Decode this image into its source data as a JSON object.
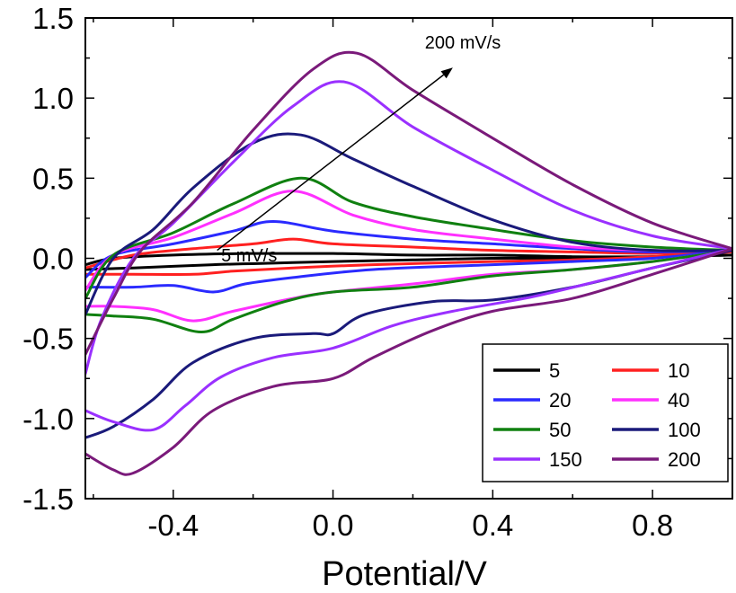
{
  "chart_data": {
    "type": "line",
    "title": "",
    "xlabel": "Potential/V",
    "ylabel": "",
    "xlim": [
      -0.62,
      1.0
    ],
    "ylim": [
      -1.5,
      1.5
    ],
    "x_ticks": [
      -0.4,
      0.0,
      0.4,
      0.8
    ],
    "x_tick_labels": [
      "-0.4",
      "0.0",
      "0.4",
      "0.8"
    ],
    "y_ticks": [
      1.5,
      1.0,
      0.5,
      0.0,
      -0.5,
      -1.0,
      -1.5
    ],
    "y_tick_labels": [
      "1.5",
      "1.0",
      "0.5",
      "0.0",
      "-0.5",
      "-1.0",
      "-1.5"
    ],
    "grid": false,
    "legend_position": "bottom-right",
    "annotations": [
      {
        "text": "5 mV/s",
        "x": -0.28,
        "y": -0.02
      },
      {
        "text": "200 mV/s",
        "x": 0.23,
        "y": 1.31
      }
    ],
    "arrow": {
      "from": [
        -0.29,
        0.05
      ],
      "to": [
        0.3,
        1.19
      ]
    },
    "series": [
      {
        "name": "5",
        "color": "#000000",
        "forward": [
          [
            -0.62,
            -0.07
          ],
          [
            -0.5,
            -0.06
          ],
          [
            -0.3,
            -0.04
          ],
          [
            -0.15,
            -0.03
          ],
          [
            0.0,
            -0.02
          ],
          [
            0.2,
            -0.01
          ],
          [
            0.4,
            0.0
          ],
          [
            0.6,
            0.0
          ],
          [
            0.8,
            0.01
          ],
          [
            1.0,
            0.02
          ]
        ],
        "reverse": [
          [
            1.0,
            0.02
          ],
          [
            0.8,
            0.01
          ],
          [
            0.6,
            0.01
          ],
          [
            0.4,
            0.02
          ],
          [
            0.2,
            0.02
          ],
          [
            0.0,
            0.03
          ],
          [
            -0.2,
            0.03
          ],
          [
            -0.4,
            0.02
          ],
          [
            -0.55,
            0.0
          ],
          [
            -0.62,
            -0.04
          ]
        ]
      },
      {
        "name": "10",
        "color": "#ff2020",
        "forward": [
          [
            -0.62,
            -0.1
          ],
          [
            -0.5,
            -0.1
          ],
          [
            -0.35,
            -0.1
          ],
          [
            -0.25,
            -0.08
          ],
          [
            -0.1,
            -0.06
          ],
          [
            0.1,
            -0.04
          ],
          [
            0.4,
            -0.02
          ],
          [
            0.6,
            -0.01
          ],
          [
            0.8,
            0.01
          ],
          [
            1.0,
            0.04
          ]
        ],
        "reverse": [
          [
            1.0,
            0.04
          ],
          [
            0.8,
            0.03
          ],
          [
            0.6,
            0.04
          ],
          [
            0.4,
            0.05
          ],
          [
            0.2,
            0.07
          ],
          [
            0.0,
            0.09
          ],
          [
            -0.1,
            0.12
          ],
          [
            -0.2,
            0.09
          ],
          [
            -0.35,
            0.06
          ],
          [
            -0.5,
            0.02
          ],
          [
            -0.62,
            -0.06
          ]
        ]
      },
      {
        "name": "20",
        "color": "#2a2aff",
        "forward": [
          [
            -0.62,
            -0.18
          ],
          [
            -0.5,
            -0.18
          ],
          [
            -0.4,
            -0.17
          ],
          [
            -0.3,
            -0.21
          ],
          [
            -0.22,
            -0.16
          ],
          [
            -0.1,
            -0.12
          ],
          [
            0.1,
            -0.07
          ],
          [
            0.4,
            -0.04
          ],
          [
            0.6,
            -0.02
          ],
          [
            0.8,
            0.0
          ],
          [
            1.0,
            0.05
          ]
        ],
        "reverse": [
          [
            1.0,
            0.05
          ],
          [
            0.8,
            0.04
          ],
          [
            0.6,
            0.06
          ],
          [
            0.4,
            0.09
          ],
          [
            0.2,
            0.12
          ],
          [
            0.0,
            0.17
          ],
          [
            -0.15,
            0.23
          ],
          [
            -0.25,
            0.17
          ],
          [
            -0.4,
            0.09
          ],
          [
            -0.55,
            0.02
          ],
          [
            -0.62,
            -0.12
          ]
        ]
      },
      {
        "name": "40",
        "color": "#ff30ff",
        "forward": [
          [
            -0.62,
            -0.3
          ],
          [
            -0.55,
            -0.3
          ],
          [
            -0.45,
            -0.32
          ],
          [
            -0.35,
            -0.39
          ],
          [
            -0.25,
            -0.33
          ],
          [
            -0.1,
            -0.25
          ],
          [
            0.0,
            -0.21
          ],
          [
            0.2,
            -0.16
          ],
          [
            0.4,
            -0.1
          ],
          [
            0.6,
            -0.07
          ],
          [
            0.8,
            -0.02
          ],
          [
            1.0,
            0.05
          ]
        ],
        "reverse": [
          [
            1.0,
            0.05
          ],
          [
            0.8,
            0.05
          ],
          [
            0.6,
            0.07
          ],
          [
            0.4,
            0.12
          ],
          [
            0.2,
            0.18
          ],
          [
            0.05,
            0.27
          ],
          [
            -0.1,
            0.42
          ],
          [
            -0.25,
            0.28
          ],
          [
            -0.4,
            0.13
          ],
          [
            -0.55,
            0.02
          ],
          [
            -0.62,
            -0.2
          ]
        ]
      },
      {
        "name": "50",
        "color": "#108010",
        "forward": [
          [
            -0.62,
            -0.35
          ],
          [
            -0.55,
            -0.36
          ],
          [
            -0.45,
            -0.38
          ],
          [
            -0.33,
            -0.46
          ],
          [
            -0.25,
            -0.38
          ],
          [
            -0.12,
            -0.27
          ],
          [
            0.0,
            -0.21
          ],
          [
            0.2,
            -0.18
          ],
          [
            0.4,
            -0.11
          ],
          [
            0.6,
            -0.07
          ],
          [
            0.8,
            -0.02
          ],
          [
            1.0,
            0.05
          ]
        ],
        "reverse": [
          [
            1.0,
            0.05
          ],
          [
            0.8,
            0.07
          ],
          [
            0.6,
            0.11
          ],
          [
            0.4,
            0.18
          ],
          [
            0.2,
            0.26
          ],
          [
            0.05,
            0.35
          ],
          [
            -0.08,
            0.5
          ],
          [
            -0.25,
            0.34
          ],
          [
            -0.4,
            0.16
          ],
          [
            -0.55,
            0.02
          ],
          [
            -0.62,
            -0.25
          ]
        ]
      },
      {
        "name": "100",
        "color": "#1a1a7a",
        "forward": [
          [
            -0.62,
            -1.12
          ],
          [
            -0.55,
            -1.05
          ],
          [
            -0.45,
            -0.88
          ],
          [
            -0.35,
            -0.65
          ],
          [
            -0.2,
            -0.5
          ],
          [
            -0.05,
            -0.47
          ],
          [
            0.0,
            -0.47
          ],
          [
            0.08,
            -0.35
          ],
          [
            0.25,
            -0.27
          ],
          [
            0.4,
            -0.26
          ],
          [
            0.6,
            -0.18
          ],
          [
            0.8,
            -0.06
          ],
          [
            1.0,
            0.05
          ]
        ],
        "reverse": [
          [
            1.0,
            0.05
          ],
          [
            0.8,
            0.05
          ],
          [
            0.6,
            0.1
          ],
          [
            0.4,
            0.24
          ],
          [
            0.2,
            0.45
          ],
          [
            0.05,
            0.62
          ],
          [
            -0.08,
            0.77
          ],
          [
            -0.2,
            0.72
          ],
          [
            -0.35,
            0.44
          ],
          [
            -0.45,
            0.18
          ],
          [
            -0.55,
            0.0
          ],
          [
            -0.62,
            -0.35
          ]
        ]
      },
      {
        "name": "150",
        "color": "#9a30ff",
        "forward": [
          [
            -0.62,
            -0.95
          ],
          [
            -0.55,
            -1.02
          ],
          [
            -0.45,
            -1.07
          ],
          [
            -0.37,
            -0.92
          ],
          [
            -0.28,
            -0.74
          ],
          [
            -0.15,
            -0.62
          ],
          [
            0.0,
            -0.56
          ],
          [
            0.15,
            -0.42
          ],
          [
            0.3,
            -0.33
          ],
          [
            0.5,
            -0.24
          ],
          [
            0.7,
            -0.12
          ],
          [
            0.85,
            -0.03
          ],
          [
            1.0,
            0.06
          ]
        ],
        "reverse": [
          [
            1.0,
            0.06
          ],
          [
            0.8,
            0.14
          ],
          [
            0.6,
            0.3
          ],
          [
            0.4,
            0.55
          ],
          [
            0.2,
            0.82
          ],
          [
            0.03,
            1.1
          ],
          [
            -0.1,
            0.95
          ],
          [
            -0.25,
            0.6
          ],
          [
            -0.4,
            0.22
          ],
          [
            -0.5,
            0.0
          ],
          [
            -0.58,
            -0.38
          ],
          [
            -0.62,
            -0.72
          ]
        ]
      },
      {
        "name": "200",
        "color": "#7a1a7a",
        "forward": [
          [
            -0.62,
            -1.22
          ],
          [
            -0.55,
            -1.32
          ],
          [
            -0.5,
            -1.34
          ],
          [
            -0.4,
            -1.18
          ],
          [
            -0.3,
            -0.95
          ],
          [
            -0.15,
            -0.8
          ],
          [
            0.0,
            -0.75
          ],
          [
            0.1,
            -0.62
          ],
          [
            0.25,
            -0.45
          ],
          [
            0.4,
            -0.33
          ],
          [
            0.6,
            -0.25
          ],
          [
            0.8,
            -0.1
          ],
          [
            1.0,
            0.06
          ]
        ],
        "reverse": [
          [
            1.0,
            0.06
          ],
          [
            0.8,
            0.22
          ],
          [
            0.6,
            0.46
          ],
          [
            0.4,
            0.75
          ],
          [
            0.2,
            1.05
          ],
          [
            0.06,
            1.28
          ],
          [
            -0.05,
            1.18
          ],
          [
            -0.2,
            0.8
          ],
          [
            -0.35,
            0.35
          ],
          [
            -0.48,
            0.05
          ],
          [
            -0.55,
            -0.25
          ],
          [
            -0.62,
            -0.6
          ]
        ]
      }
    ]
  }
}
